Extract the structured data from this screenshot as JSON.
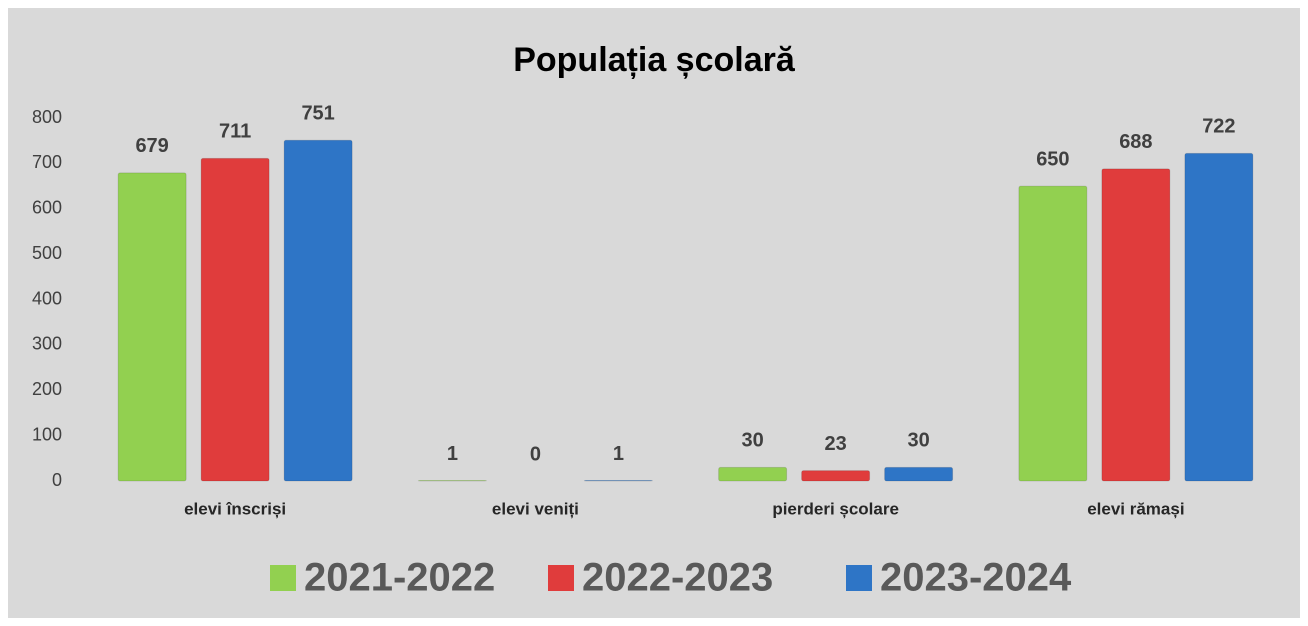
{
  "chart_data": {
    "type": "bar",
    "title": "Populația școlară",
    "categories": [
      "elevi înscriși",
      "elevi veniți",
      "pierderi școlare",
      "elevi rămași"
    ],
    "series": [
      {
        "name": "2021-2022",
        "color": "#92d050",
        "values": [
          679,
          1,
          30,
          650
        ]
      },
      {
        "name": "2022-2023",
        "color": "#e03c3c",
        "values": [
          711,
          0,
          23,
          688
        ]
      },
      {
        "name": "2023-2024",
        "color": "#2e75c6",
        "values": [
          751,
          1,
          30,
          722
        ]
      }
    ],
    "ylim": [
      0,
      800
    ],
    "yticks": [
      0,
      100,
      200,
      300,
      400,
      500,
      600,
      700,
      800
    ],
    "grid": false,
    "legend": "bottom"
  }
}
